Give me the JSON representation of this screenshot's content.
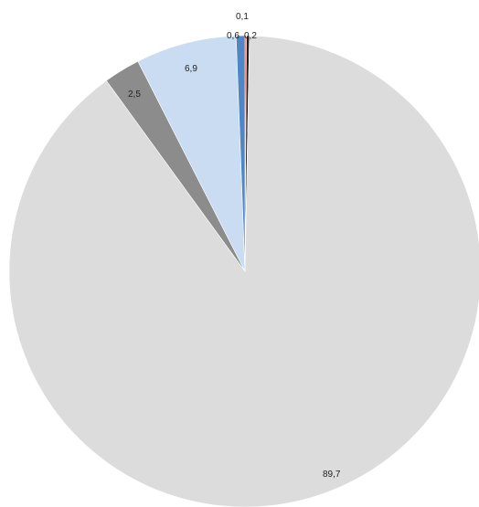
{
  "chart_data": {
    "type": "pie",
    "title": "",
    "legend": "none",
    "start_angle_deg": 0,
    "direction": "clockwise",
    "slices": [
      {
        "label": "0,1",
        "value": 0.1,
        "color": "#f2402a"
      },
      {
        "label": "0,2",
        "value": 0.2,
        "color": "#1f1f1f"
      },
      {
        "label": "89,7",
        "value": 89.7,
        "color": "#dcdcdc"
      },
      {
        "label": "2,5",
        "value": 2.5,
        "color": "#8c8c8c"
      },
      {
        "label": "6,9",
        "value": 6.9,
        "color": "#c9dcf2"
      },
      {
        "label": "0,6",
        "value": 0.6,
        "color": "#4f86c6"
      }
    ]
  }
}
